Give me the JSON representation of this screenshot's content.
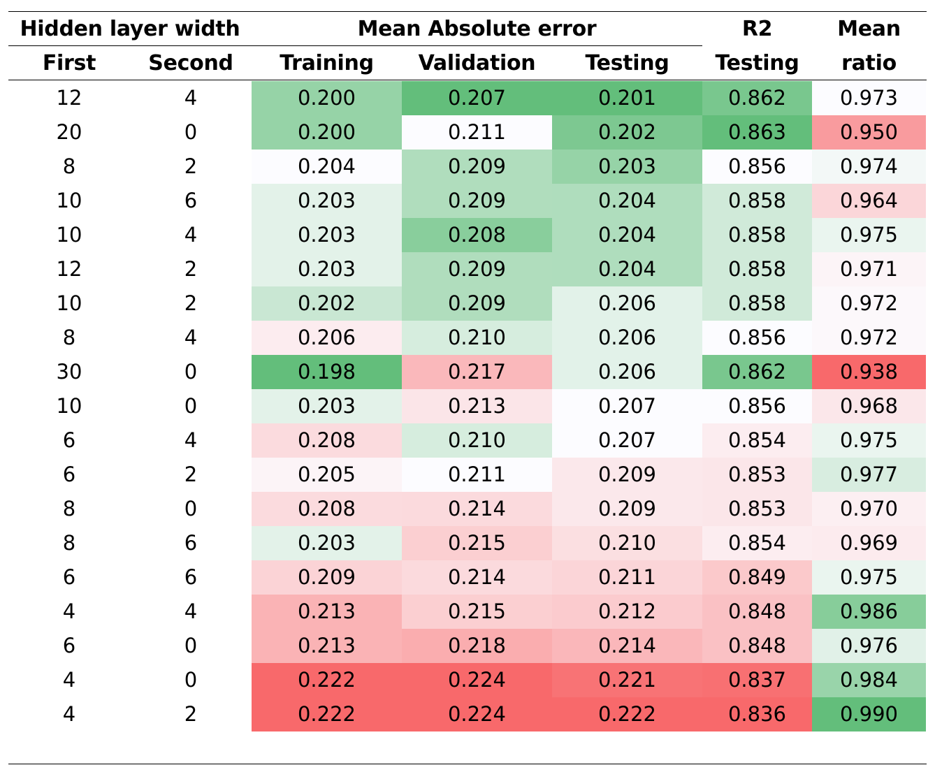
{
  "header": {
    "group_hidden": "Hidden layer width",
    "group_mae": "Mean Absolute error",
    "r2_top": "R2",
    "mean_top": "Mean",
    "col_first": "First",
    "col_second": "Second",
    "col_training": "Training",
    "col_validation": "Validation",
    "col_testing": "Testing",
    "col_r2": "Testing",
    "col_ratio": "ratio"
  },
  "rows": [
    {
      "first": "12",
      "second": "4",
      "training": "0.200",
      "validation": "0.207",
      "testing": "0.201",
      "r2": "0.862",
      "ratio": "0.973"
    },
    {
      "first": "20",
      "second": "0",
      "training": "0.200",
      "validation": "0.211",
      "testing": "0.202",
      "r2": "0.863",
      "ratio": "0.950"
    },
    {
      "first": "8",
      "second": "2",
      "training": "0.204",
      "validation": "0.209",
      "testing": "0.203",
      "r2": "0.856",
      "ratio": "0.974"
    },
    {
      "first": "10",
      "second": "6",
      "training": "0.203",
      "validation": "0.209",
      "testing": "0.204",
      "r2": "0.858",
      "ratio": "0.964"
    },
    {
      "first": "10",
      "second": "4",
      "training": "0.203",
      "validation": "0.208",
      "testing": "0.204",
      "r2": "0.858",
      "ratio": "0.975"
    },
    {
      "first": "12",
      "second": "2",
      "training": "0.203",
      "validation": "0.209",
      "testing": "0.204",
      "r2": "0.858",
      "ratio": "0.971"
    },
    {
      "first": "10",
      "second": "2",
      "training": "0.202",
      "validation": "0.209",
      "testing": "0.206",
      "r2": "0.858",
      "ratio": "0.972"
    },
    {
      "first": "8",
      "second": "4",
      "training": "0.206",
      "validation": "0.210",
      "testing": "0.206",
      "r2": "0.856",
      "ratio": "0.972"
    },
    {
      "first": "30",
      "second": "0",
      "training": "0.198",
      "validation": "0.217",
      "testing": "0.206",
      "r2": "0.862",
      "ratio": "0.938"
    },
    {
      "first": "10",
      "second": "0",
      "training": "0.203",
      "validation": "0.213",
      "testing": "0.207",
      "r2": "0.856",
      "ratio": "0.968"
    },
    {
      "first": "6",
      "second": "4",
      "training": "0.208",
      "validation": "0.210",
      "testing": "0.207",
      "r2": "0.854",
      "ratio": "0.975"
    },
    {
      "first": "6",
      "second": "2",
      "training": "0.205",
      "validation": "0.211",
      "testing": "0.209",
      "r2": "0.853",
      "ratio": "0.977"
    },
    {
      "first": "8",
      "second": "0",
      "training": "0.208",
      "validation": "0.214",
      "testing": "0.209",
      "r2": "0.853",
      "ratio": "0.970"
    },
    {
      "first": "8",
      "second": "6",
      "training": "0.203",
      "validation": "0.215",
      "testing": "0.210",
      "r2": "0.854",
      "ratio": "0.969"
    },
    {
      "first": "6",
      "second": "6",
      "training": "0.209",
      "validation": "0.214",
      "testing": "0.211",
      "r2": "0.849",
      "ratio": "0.975"
    },
    {
      "first": "4",
      "second": "4",
      "training": "0.213",
      "validation": "0.215",
      "testing": "0.212",
      "r2": "0.848",
      "ratio": "0.986"
    },
    {
      "first": "6",
      "second": "0",
      "training": "0.213",
      "validation": "0.218",
      "testing": "0.214",
      "r2": "0.848",
      "ratio": "0.976"
    },
    {
      "first": "4",
      "second": "0",
      "training": "0.222",
      "validation": "0.224",
      "testing": "0.221",
      "r2": "0.837",
      "ratio": "0.984"
    },
    {
      "first": "4",
      "second": "2",
      "training": "0.222",
      "validation": "0.224",
      "testing": "0.222",
      "r2": "0.836",
      "ratio": "0.990"
    }
  ],
  "colors": {
    "green": "#63be7b",
    "white": "#fcfcff",
    "red": "#f8696b"
  },
  "color_scale": {
    "training": {
      "best": "low"
    },
    "validation": {
      "best": "low"
    },
    "testing": {
      "best": "low"
    },
    "r2": {
      "best": "high"
    },
    "ratio": {
      "best": "high"
    }
  }
}
